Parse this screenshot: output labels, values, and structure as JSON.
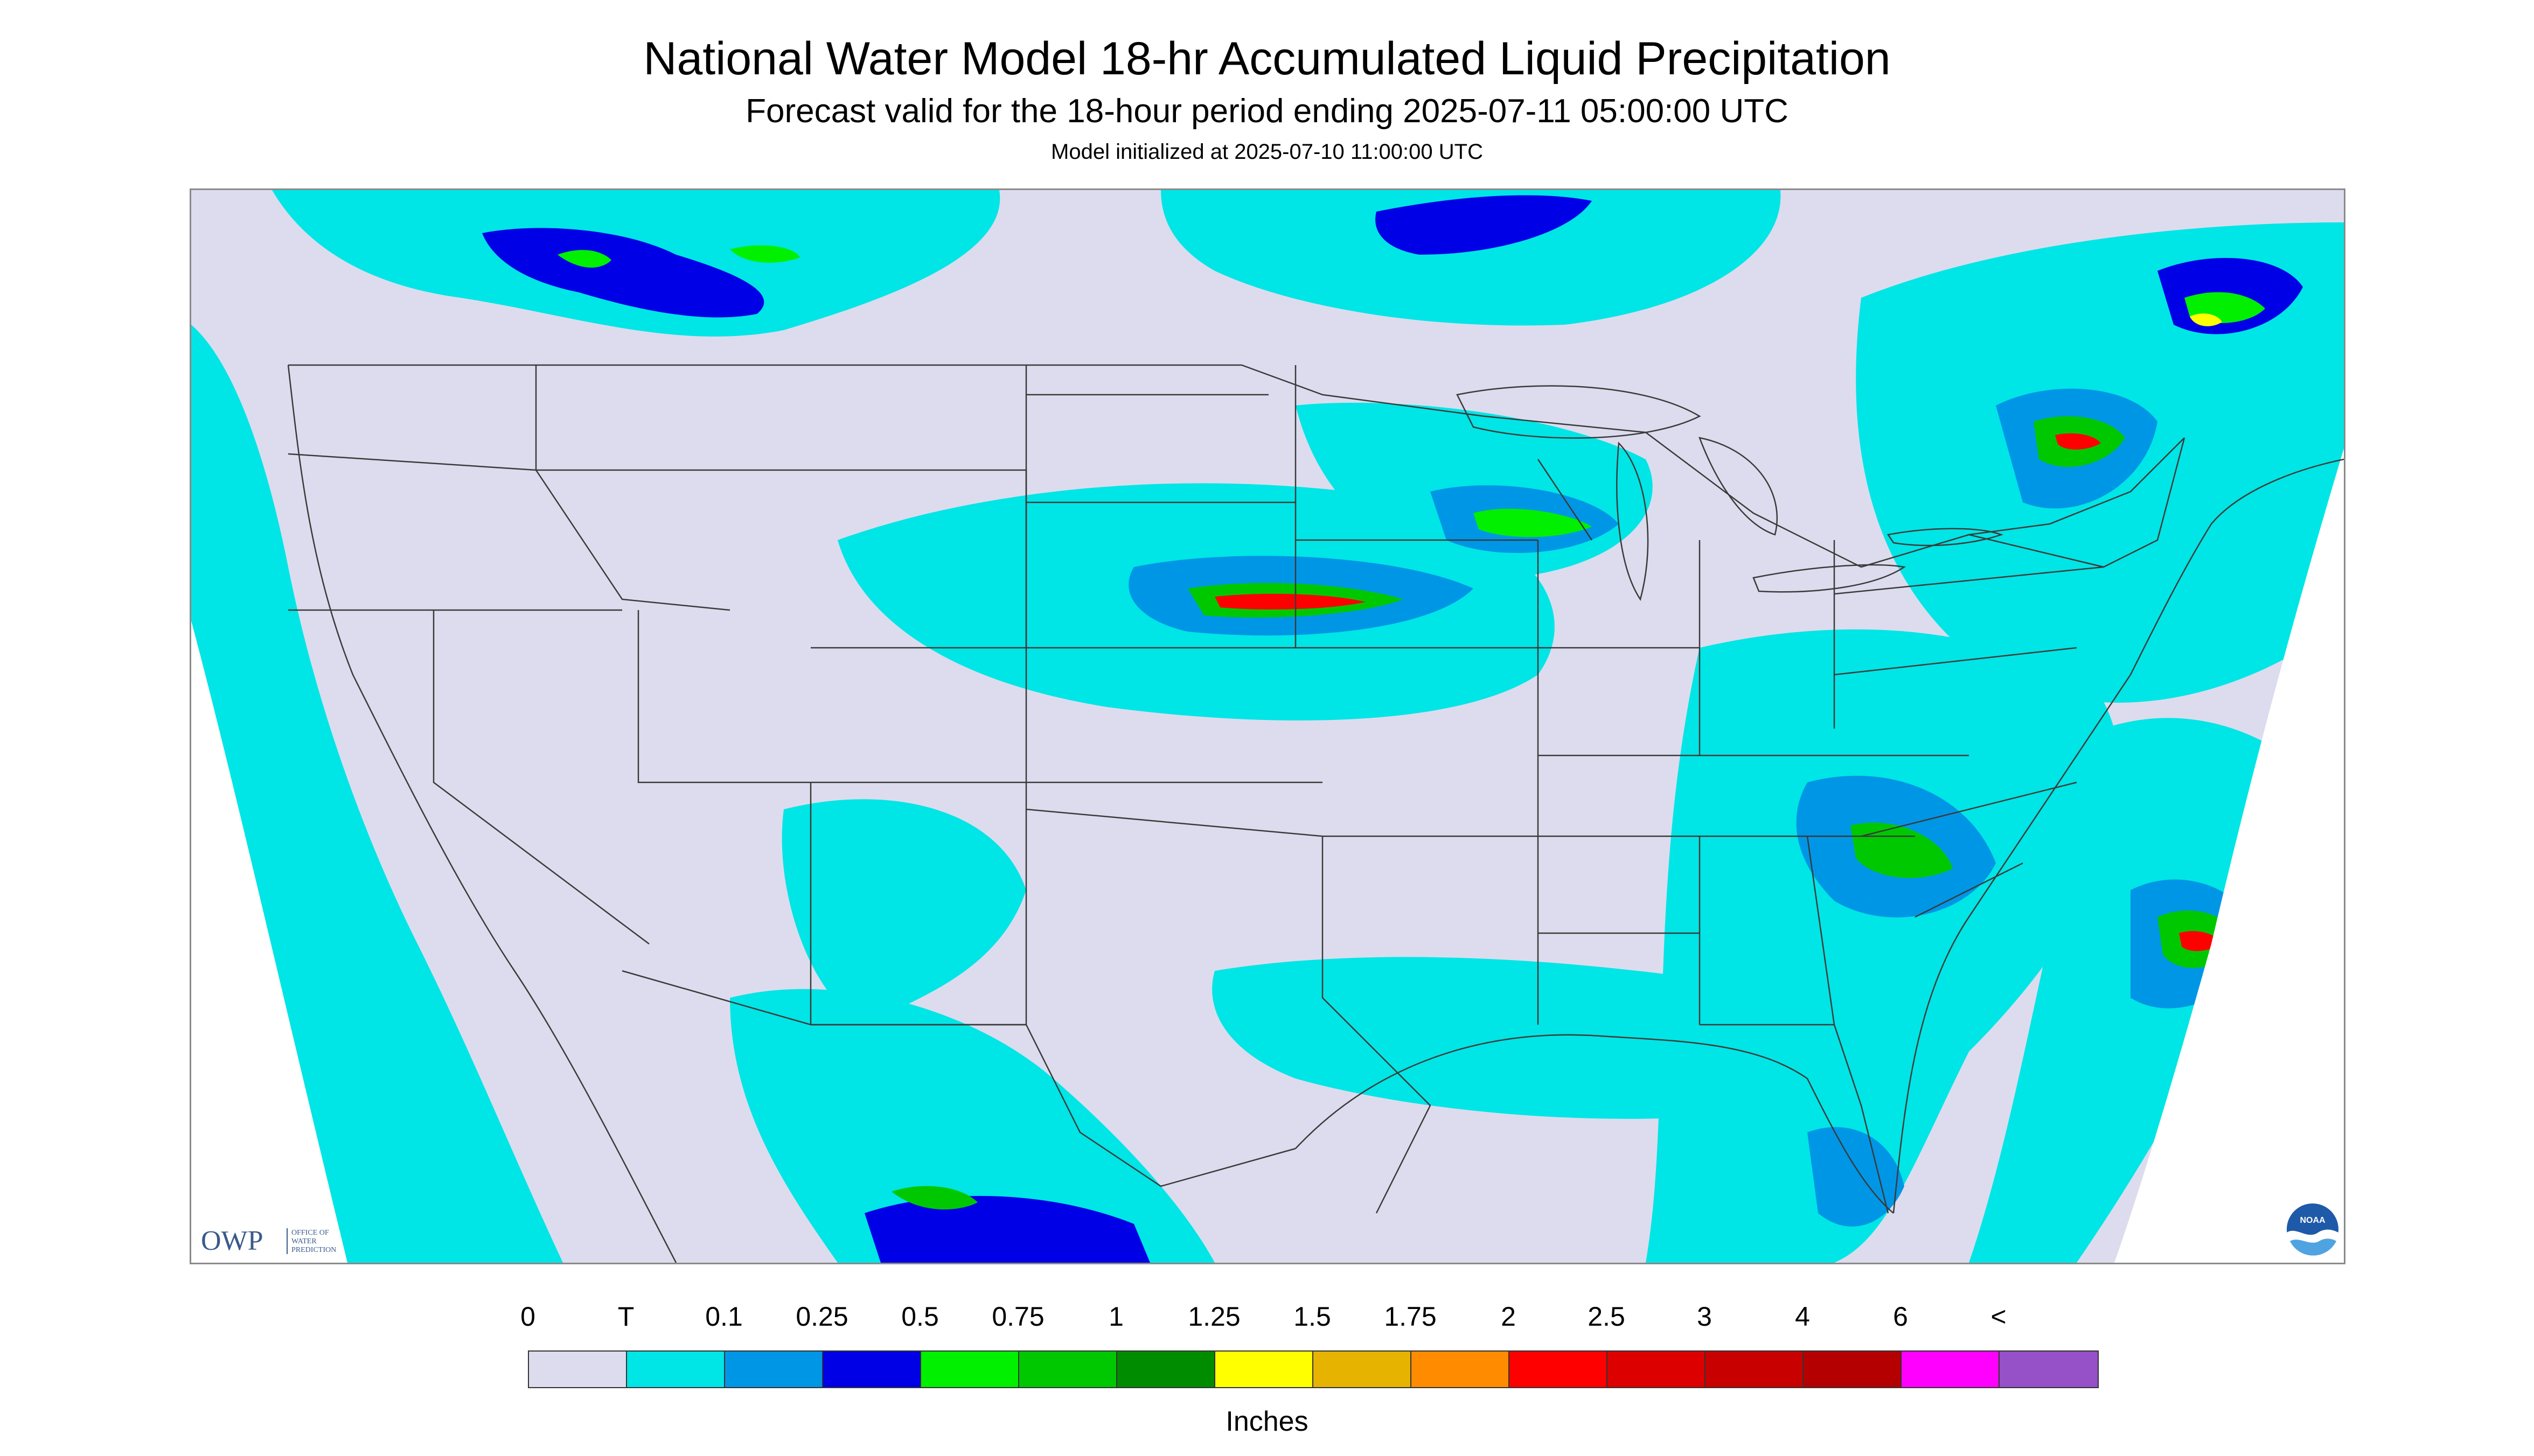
{
  "header": {
    "title": "National Water Model 18-hr Accumulated Liquid Precipitation",
    "subtitle": "Forecast valid for the 18-hour period ending 2025-07-11 05:00:00 UTC",
    "init": "Model initialized at 2025-07-10 11:00:00 UTC"
  },
  "map": {
    "background_color": "#dcdcee",
    "outside_color": "#ffffff",
    "boundary_color": "#3a3a3a"
  },
  "logos": {
    "owp_text": "OWP",
    "owp_sub1": "OFFICE OF",
    "owp_sub2": "WATER",
    "owp_sub3": "PREDICTION",
    "noaa_text": "NOAA"
  },
  "legend": {
    "labels": [
      "0",
      "T",
      "0.1",
      "0.25",
      "0.5",
      "0.75",
      "1",
      "1.25",
      "1.5",
      "1.75",
      "2",
      "2.5",
      "3",
      "4",
      "6",
      "<"
    ],
    "colors": [
      "#dcdcee",
      "#00e5e5",
      "#0096e6",
      "#0000e6",
      "#00f000",
      "#00c800",
      "#008c00",
      "#ffff00",
      "#e6b400",
      "#ff8c00",
      "#ff0000",
      "#dc0000",
      "#c80000",
      "#b40000",
      "#ff00ff",
      "#9650c8"
    ],
    "units": "Inches"
  }
}
